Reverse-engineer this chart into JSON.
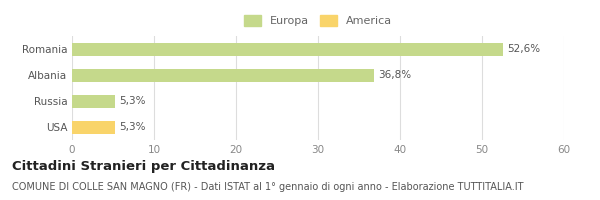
{
  "categories": [
    "Romania",
    "Albania",
    "Russia",
    "USA"
  ],
  "values": [
    52.6,
    36.8,
    5.3,
    5.3
  ],
  "colors": [
    "#c5d98b",
    "#c5d98b",
    "#c5d98b",
    "#f9d46a"
  ],
  "labels": [
    "52,6%",
    "36,8%",
    "5,3%",
    "5,3%"
  ],
  "xlim": [
    0,
    60
  ],
  "xticks": [
    0,
    10,
    20,
    30,
    40,
    50,
    60
  ],
  "legend_items": [
    {
      "label": "Europa",
      "color": "#c5d98b"
    },
    {
      "label": "America",
      "color": "#f9d46a"
    }
  ],
  "title": "Cittadini Stranieri per Cittadinanza",
  "subtitle": "COMUNE DI COLLE SAN MAGNO (FR) - Dati ISTAT al 1° gennaio di ogni anno - Elaborazione TUTTITALIA.IT",
  "background_color": "#ffffff",
  "grid_color": "#dddddd",
  "bar_height": 0.5,
  "title_fontsize": 9.5,
  "subtitle_fontsize": 7,
  "tick_fontsize": 7.5,
  "label_fontsize": 7.5
}
